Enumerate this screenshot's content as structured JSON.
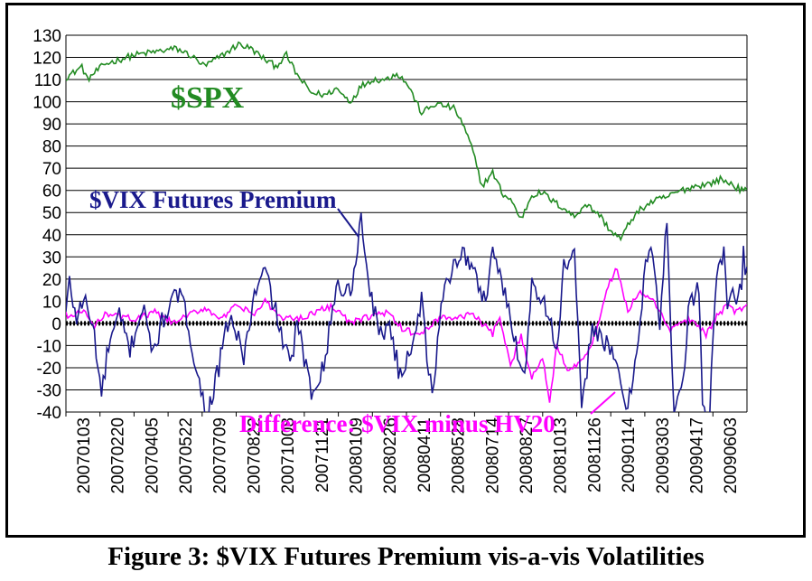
{
  "caption": "Figure 3: $VIX Futures Premium vis-a-vis Volatilities",
  "chart_data": {
    "type": "line",
    "ylim": [
      -40,
      130
    ],
    "ytick_step": 10,
    "grid": true,
    "x_tick_labels": [
      "20070103",
      "20070220",
      "20070405",
      "20070522",
      "20070709",
      "20070822",
      "20071008",
      "20071121",
      "20080109",
      "20080226",
      "20080411",
      "20080528",
      "20080714",
      "20080827",
      "20081013",
      "20081126",
      "20090114",
      "20090303",
      "20090417",
      "20090603"
    ],
    "annotations": [
      {
        "text": "$SPX",
        "color": "#228b22"
      },
      {
        "text": "$VIX Futures Premium",
        "color": "#1a1a8c"
      },
      {
        "text": "Difference: $VIX minus HV20",
        "color": "#ff00ff"
      }
    ],
    "series": [
      {
        "name": "$SPX",
        "color": "#228b22",
        "values": [
          111,
          113,
          116,
          110,
          113,
          117,
          119,
          121,
          122,
          123,
          124,
          121,
          116,
          119,
          122,
          126,
          124,
          119,
          116,
          121,
          112,
          104,
          103,
          106,
          100,
          107,
          110,
          110,
          113,
          108,
          95,
          99,
          98,
          97,
          92,
          80,
          62,
          68,
          58,
          56,
          47,
          58,
          59,
          55,
          52,
          48,
          54,
          49,
          42,
          38,
          47,
          52,
          55,
          57,
          60,
          62,
          63,
          65,
          63,
          60
        ],
        "knots": [
          0,
          4,
          9,
          12,
          16,
          22,
          30,
          38,
          46,
          54,
          62,
          70,
          78,
          84,
          90,
          97,
          104,
          112,
          118,
          124,
          130,
          138,
          146,
          152,
          160,
          166,
          172,
          180,
          186,
          192,
          200,
          208,
          214,
          218,
          222,
          228,
          234,
          240,
          246,
          250,
          256,
          262,
          268,
          274,
          280,
          286,
          292,
          300,
          306,
          312,
          318,
          324,
          330,
          338,
          346,
          354,
          362,
          368,
          374,
          380
        ]
      },
      {
        "name": "$VIX Futures Premium",
        "color": "#1a1a8c",
        "values": [
          5,
          18,
          2,
          12,
          -5,
          -33,
          -10,
          3,
          -12,
          10,
          -15,
          5,
          14,
          -5,
          -32,
          -40,
          -20,
          4,
          -15,
          12,
          24,
          5,
          -20,
          0,
          -32,
          -15,
          17,
          14,
          47,
          20,
          -5,
          0,
          -25,
          -10,
          10,
          -35,
          15,
          33,
          25,
          10,
          35,
          15,
          -5,
          -25,
          20,
          8,
          -12,
          25,
          30,
          -40,
          0,
          -10,
          -20,
          -40,
          -5,
          28,
          32,
          -3,
          48,
          -40,
          -20,
          5,
          18,
          -40,
          -40,
          25,
          30,
          8,
          15,
          12,
          20,
          30,
          22
        ],
        "knots": [
          0,
          2,
          6,
          10,
          16,
          20,
          24,
          30,
          36,
          44,
          48,
          56,
          64,
          70,
          76,
          80,
          86,
          92,
          100,
          106,
          112,
          118,
          126,
          130,
          138,
          146,
          152,
          160,
          166,
          170,
          176,
          182,
          188,
          194,
          200,
          206,
          212,
          222,
          228,
          236,
          240,
          246,
          252,
          258,
          262,
          270,
          276,
          280,
          286,
          290,
          296,
          304,
          310,
          316,
          322,
          326,
          330,
          334,
          338,
          342,
          348,
          350,
          356,
          358,
          362,
          366,
          370,
          372,
          376,
          378,
          380,
          381,
          383
        ]
      },
      {
        "name": "Difference: $VIX minus HV20",
        "color": "#ff00ff",
        "values": [
          4,
          3,
          6,
          -2,
          5,
          3,
          2,
          5,
          0,
          4,
          7,
          2,
          8,
          4,
          10,
          3,
          2,
          5,
          8,
          0,
          3,
          5,
          -3,
          -5,
          3,
          2,
          5,
          0,
          -5,
          3,
          -20,
          -5,
          -25,
          -15,
          -35,
          -10,
          -20,
          -18,
          -10,
          15,
          25,
          5,
          14,
          10,
          -3,
          2,
          -5,
          3,
          8,
          5,
          7,
          9
        ],
        "knots": [
          0,
          4,
          10,
          16,
          22,
          30,
          40,
          50,
          60,
          70,
          78,
          88,
          96,
          106,
          112,
          120,
          130,
          140,
          150,
          160,
          170,
          180,
          190,
          200,
          210,
          220,
          228,
          234,
          240,
          244,
          250,
          256,
          262,
          268,
          272,
          276,
          282,
          288,
          296,
          304,
          310,
          316,
          322,
          330,
          340,
          350,
          360,
          366,
          372,
          376,
          380,
          383
        ]
      }
    ]
  }
}
